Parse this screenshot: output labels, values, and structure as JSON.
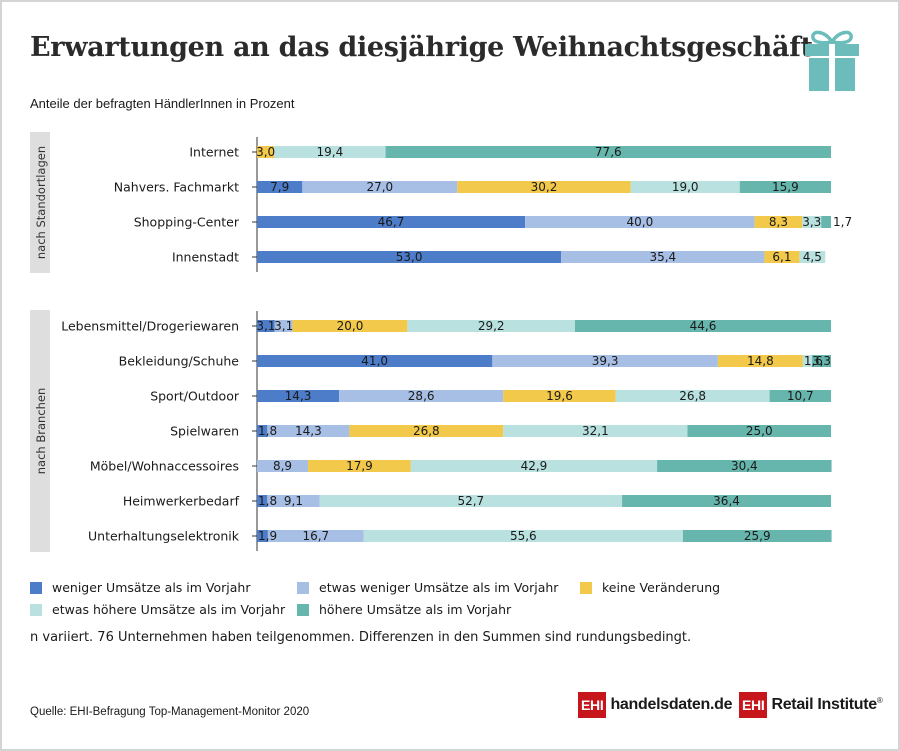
{
  "title": "Erwartungen an das diesjährige Weihnachtsgeschäft",
  "subtitle": "Anteile der befragten HändlerInnen in Prozent",
  "note": "n variiert. 76 Unternehmen haben teilgenommen. Differenzen in den Summen sind rundungsbedingt.",
  "source": "Quelle: EHI-Befragung Top-Management-Monitor 2020",
  "logos": {
    "handelsdaten_box": "EHI",
    "handelsdaten_text": "handelsdaten.de",
    "retail_box": "EHI",
    "retail_text": "Retail Institute",
    "retail_mark": "®"
  },
  "colors": {
    "weniger": "#4d7cc8",
    "etwas_weniger": "#a8bfe5",
    "keine": "#f2c94a",
    "etwas_hoeher": "#b8e1df",
    "hoeher": "#67b6ad",
    "gift": "#6cbcbb",
    "group_band": "#dedede",
    "axis": "#333333"
  },
  "chart_data": {
    "type": "bar",
    "orientation": "horizontal",
    "stacked": true,
    "unit": "%",
    "xlim": [
      0,
      100
    ],
    "series_names": [
      "weniger Umsätze als im Vorjahr",
      "etwas weniger Umsätze als im Vorjahr",
      "keine Veränderung",
      "etwas höhere Umsätze als im Vorjahr",
      "höhere Umsätze als im Vorjahr"
    ],
    "series_keys": [
      "weniger",
      "etwas_weniger",
      "keine",
      "etwas_hoeher",
      "hoeher"
    ],
    "groups": [
      {
        "label": "nach Standortlagen",
        "rows": [
          {
            "category": "Internet",
            "values": [
              null,
              null,
              3.0,
              19.4,
              77.6
            ],
            "labels": [
              "",
              "",
              "3,0",
              "19,4",
              "77,6"
            ]
          },
          {
            "category": "Nahvers. Fachmarkt",
            "values": [
              7.9,
              27.0,
              30.2,
              19.0,
              15.9
            ],
            "labels": [
              "7,9",
              "27,0",
              "30,2",
              "19,0",
              "15,9"
            ]
          },
          {
            "category": "Shopping-Center",
            "values": [
              46.7,
              40.0,
              8.3,
              3.3,
              1.7
            ],
            "labels": [
              "46,7",
              "40,0",
              "8,3",
              "3,3",
              "1,7"
            ]
          },
          {
            "category": "Innenstadt",
            "values": [
              53.0,
              35.4,
              6.1,
              4.5,
              null
            ],
            "labels": [
              "53,0",
              "35,4",
              "6,1",
              "4,5",
              ""
            ]
          }
        ]
      },
      {
        "label": "nach Branchen",
        "rows": [
          {
            "category": "Lebensmittel/Drogeriewaren",
            "values": [
              3.1,
              3.1,
              20.0,
              29.2,
              44.6
            ],
            "labels": [
              "3,1",
              "3,1",
              "20,0",
              "29,2",
              "44,6"
            ]
          },
          {
            "category": "Bekleidung/Schuhe",
            "values": [
              41.0,
              39.3,
              14.8,
              1.6,
              3.3
            ],
            "labels": [
              "41,0",
              "39,3",
              "14,8",
              "1,6",
              "3,3"
            ]
          },
          {
            "category": "Sport/Outdoor",
            "values": [
              14.3,
              28.6,
              19.6,
              26.8,
              10.7
            ],
            "labels": [
              "14,3",
              "28,6",
              "19,6",
              "26,8",
              "10,7"
            ]
          },
          {
            "category": "Spielwaren",
            "values": [
              1.8,
              14.3,
              26.8,
              32.1,
              25.0
            ],
            "labels": [
              "1,8",
              "14,3",
              "26,8",
              "32,1",
              "25,0"
            ]
          },
          {
            "category": "Möbel/Wohnaccessoires",
            "values": [
              null,
              8.9,
              17.9,
              42.9,
              30.4
            ],
            "labels": [
              "",
              "8,9",
              "17,9",
              "42,9",
              "30,4"
            ]
          },
          {
            "category": "Heimwerkerbedarf",
            "values": [
              1.8,
              9.1,
              null,
              52.7,
              36.4
            ],
            "labels": [
              "1,8",
              "9,1",
              "",
              "52,7",
              "36,4"
            ]
          },
          {
            "category": "Unterhaltungselektronik",
            "values": [
              1.9,
              16.7,
              null,
              55.6,
              25.9
            ],
            "labels": [
              "1,9",
              "16,7",
              "",
              "55,6",
              "25,9"
            ]
          }
        ]
      }
    ]
  }
}
